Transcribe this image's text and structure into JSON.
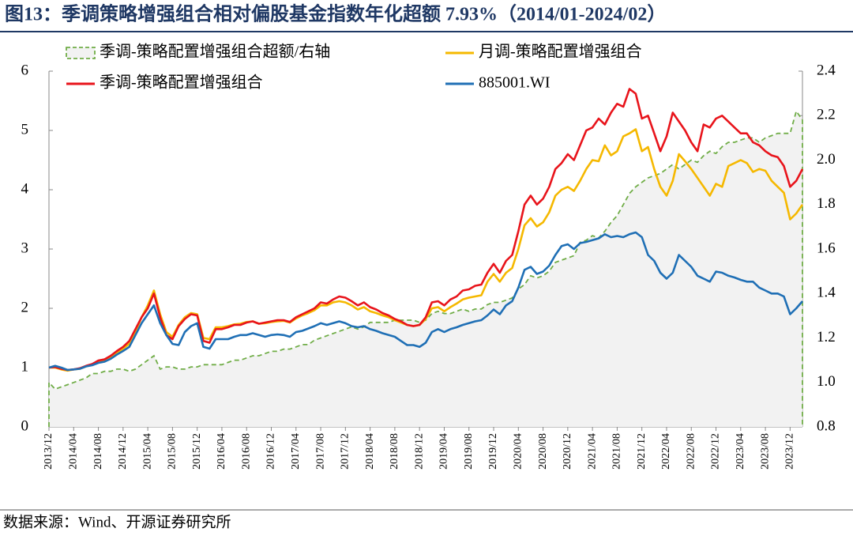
{
  "chart_data": {
    "type": "line",
    "title": "图13：季调策略增强组合相对偏股基金指数年化超额 7.93%（2014/01-2024/02）",
    "source": "数据来源：Wind、开源证券研究所",
    "categories": [
      "2013/12",
      null,
      null,
      null,
      "2014/04",
      null,
      null,
      null,
      "2014/08",
      null,
      null,
      null,
      "2014/12",
      null,
      null,
      null,
      "2015/04",
      null,
      null,
      null,
      "2015/08",
      null,
      null,
      null,
      "2015/12",
      null,
      null,
      null,
      "2016/04",
      null,
      null,
      null,
      "2016/08",
      null,
      null,
      null,
      "2016/12",
      null,
      null,
      null,
      "2017/04",
      null,
      null,
      null,
      "2017/08",
      null,
      null,
      null,
      "2017/12",
      null,
      null,
      null,
      "2018/04",
      null,
      null,
      null,
      "2018/08",
      null,
      null,
      null,
      "2018/12",
      null,
      null,
      null,
      "2019/04",
      null,
      null,
      null,
      "2019/08",
      null,
      null,
      null,
      "2019/12",
      null,
      null,
      null,
      "2020/04",
      null,
      null,
      null,
      "2020/08",
      null,
      null,
      null,
      "2020/12",
      null,
      null,
      null,
      "2021/04",
      null,
      null,
      null,
      "2021/08",
      null,
      null,
      null,
      "2021/12",
      null,
      null,
      null,
      "2022/04",
      null,
      null,
      null,
      "2022/08",
      null,
      null,
      null,
      "2022/12",
      null,
      null,
      null,
      "2023/04",
      null,
      null,
      null,
      "2023/08",
      null,
      null,
      null,
      "2023/12",
      null,
      null
    ],
    "series": [
      {
        "name": "季调-策略配置增强组合超额/右轴",
        "color": "#70ad47",
        "fill": "#f2f2f2",
        "axis": "y2",
        "dashed": true,
        "values": [
          1.0,
          0.97,
          0.98,
          0.99,
          1.0,
          1.01,
          1.02,
          1.04,
          1.04,
          1.05,
          1.05,
          1.06,
          1.06,
          1.05,
          1.06,
          1.08,
          1.1,
          1.12,
          1.06,
          1.07,
          1.07,
          1.06,
          1.06,
          1.07,
          1.07,
          1.08,
          1.08,
          1.08,
          1.08,
          1.09,
          1.1,
          1.1,
          1.11,
          1.12,
          1.12,
          1.13,
          1.14,
          1.14,
          1.15,
          1.15,
          1.16,
          1.17,
          1.17,
          1.19,
          1.2,
          1.21,
          1.22,
          1.23,
          1.24,
          1.25,
          1.24,
          1.25,
          1.27,
          1.27,
          1.27,
          1.27,
          1.28,
          1.28,
          1.28,
          1.28,
          1.27,
          1.28,
          1.31,
          1.32,
          1.31,
          1.31,
          1.32,
          1.33,
          1.32,
          1.33,
          1.33,
          1.35,
          1.36,
          1.36,
          1.37,
          1.38,
          1.42,
          1.44,
          1.48,
          1.47,
          1.48,
          1.5,
          1.54,
          1.55,
          1.56,
          1.57,
          1.63,
          1.64,
          1.66,
          1.65,
          1.68,
          1.72,
          1.75,
          1.8,
          1.85,
          1.88,
          1.9,
          1.92,
          1.93,
          1.94,
          1.96,
          1.98,
          1.96,
          1.98,
          2.0,
          1.99,
          2.02,
          2.04,
          2.03,
          2.06,
          2.08,
          2.08,
          2.09,
          2.1,
          2.1,
          2.08,
          2.1,
          2.11,
          2.12,
          2.12,
          2.12,
          2.22,
          2.18
        ]
      },
      {
        "name": "月调-策略配置增强组合",
        "color": "#f5b800",
        "values": [
          1.0,
          1.0,
          0.97,
          0.95,
          0.97,
          0.98,
          1.02,
          1.05,
          1.1,
          1.12,
          1.18,
          1.25,
          1.32,
          1.4,
          1.6,
          1.85,
          2.05,
          2.3,
          1.9,
          1.6,
          1.52,
          1.72,
          1.85,
          1.92,
          1.9,
          1.5,
          1.48,
          1.68,
          1.68,
          1.7,
          1.73,
          1.74,
          1.77,
          1.78,
          1.74,
          1.75,
          1.77,
          1.78,
          1.79,
          1.76,
          1.83,
          1.88,
          1.92,
          1.97,
          2.05,
          2.05,
          2.1,
          2.12,
          2.1,
          2.05,
          1.98,
          2.02,
          1.95,
          1.92,
          1.88,
          1.85,
          1.8,
          1.76,
          1.72,
          1.7,
          1.72,
          1.82,
          2.0,
          2.02,
          1.95,
          2.02,
          2.08,
          2.15,
          2.18,
          2.2,
          2.22,
          2.45,
          2.58,
          2.45,
          2.6,
          2.68,
          3.0,
          3.4,
          3.52,
          3.38,
          3.45,
          3.62,
          3.9,
          4.0,
          4.05,
          3.98,
          4.15,
          4.35,
          4.5,
          4.48,
          4.75,
          4.58,
          4.65,
          4.9,
          4.95,
          5.02,
          4.65,
          4.72,
          4.35,
          4.05,
          3.9,
          4.15,
          4.6,
          4.48,
          4.35,
          4.2,
          4.05,
          3.9,
          4.1,
          4.05,
          4.4,
          4.45,
          4.5,
          4.45,
          4.3,
          4.35,
          4.32,
          4.15,
          4.05,
          3.95,
          3.5,
          3.6,
          3.75
        ]
      },
      {
        "name": "季调-策略配置增强组合",
        "color": "#e8141b",
        "values": [
          1.0,
          1.01,
          0.98,
          0.96,
          0.97,
          0.99,
          1.03,
          1.06,
          1.12,
          1.14,
          1.2,
          1.28,
          1.35,
          1.45,
          1.65,
          1.85,
          2.0,
          2.25,
          1.85,
          1.55,
          1.48,
          1.7,
          1.82,
          1.9,
          1.88,
          1.45,
          1.42,
          1.65,
          1.65,
          1.68,
          1.72,
          1.72,
          1.76,
          1.78,
          1.74,
          1.76,
          1.78,
          1.8,
          1.8,
          1.77,
          1.85,
          1.9,
          1.95,
          2.0,
          2.1,
          2.08,
          2.15,
          2.2,
          2.18,
          2.12,
          2.05,
          2.1,
          2.02,
          1.98,
          1.92,
          1.88,
          1.82,
          1.78,
          1.72,
          1.7,
          1.72,
          1.85,
          2.1,
          2.12,
          2.05,
          2.15,
          2.2,
          2.3,
          2.32,
          2.38,
          2.4,
          2.6,
          2.75,
          2.6,
          2.8,
          2.9,
          3.3,
          3.75,
          3.9,
          3.75,
          3.85,
          4.05,
          4.35,
          4.45,
          4.6,
          4.5,
          4.75,
          5.0,
          5.05,
          5.2,
          5.1,
          5.3,
          5.45,
          5.4,
          5.7,
          5.62,
          5.2,
          5.25,
          4.95,
          4.65,
          4.9,
          5.3,
          5.15,
          5.0,
          4.8,
          4.65,
          5.1,
          5.05,
          5.2,
          5.25,
          5.15,
          5.05,
          4.95,
          4.95,
          4.8,
          4.75,
          4.65,
          4.58,
          4.55,
          4.4,
          4.05,
          4.15,
          4.35
        ]
      },
      {
        "name": "885001.WI",
        "color": "#1f6fb5",
        "values": [
          1.0,
          1.03,
          1.0,
          0.96,
          0.97,
          0.98,
          1.02,
          1.04,
          1.08,
          1.1,
          1.15,
          1.22,
          1.28,
          1.35,
          1.55,
          1.75,
          1.9,
          2.05,
          1.75,
          1.55,
          1.4,
          1.38,
          1.6,
          1.7,
          1.75,
          1.35,
          1.32,
          1.48,
          1.48,
          1.48,
          1.52,
          1.55,
          1.55,
          1.58,
          1.55,
          1.52,
          1.55,
          1.56,
          1.55,
          1.52,
          1.6,
          1.62,
          1.66,
          1.7,
          1.75,
          1.72,
          1.75,
          1.78,
          1.75,
          1.7,
          1.68,
          1.7,
          1.65,
          1.62,
          1.58,
          1.55,
          1.52,
          1.45,
          1.38,
          1.38,
          1.35,
          1.42,
          1.6,
          1.65,
          1.6,
          1.65,
          1.68,
          1.72,
          1.75,
          1.78,
          1.8,
          1.88,
          1.98,
          1.9,
          2.05,
          2.12,
          2.35,
          2.65,
          2.7,
          2.58,
          2.62,
          2.72,
          2.9,
          3.05,
          3.08,
          3.0,
          3.1,
          3.12,
          3.15,
          3.18,
          3.25,
          3.2,
          3.22,
          3.2,
          3.25,
          3.28,
          3.2,
          2.9,
          2.8,
          2.6,
          2.5,
          2.6,
          2.9,
          2.8,
          2.7,
          2.55,
          2.5,
          2.45,
          2.62,
          2.6,
          2.55,
          2.52,
          2.48,
          2.45,
          2.45,
          2.35,
          2.3,
          2.25,
          2.25,
          2.2,
          1.9,
          2.0,
          2.12
        ]
      }
    ],
    "ylim": [
      0,
      6
    ],
    "yticks": [
      0,
      1,
      2,
      3,
      4,
      5,
      6
    ],
    "y2lim": [
      0.8,
      2.4
    ],
    "y2ticks": [
      0.8,
      {
        "value": 1.0,
        "label": "1.0"
      },
      1.2,
      1.4,
      1.6,
      1.8,
      {
        "value": 2.0,
        "label": "2.0"
      },
      2.2,
      2.4
    ],
    "grid": false,
    "legend": "top"
  }
}
